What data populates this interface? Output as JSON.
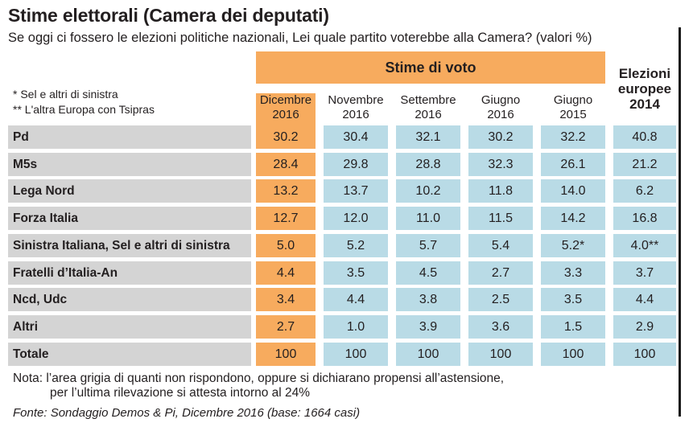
{
  "title": "Stime elettorali (Camera dei deputati)",
  "subtitle": "Se oggi ci fossero le elezioni politiche nazionali, Lei quale partito voterebbe alla Camera? (valori %)",
  "header_group": "Stime di voto",
  "euro_header": [
    "Elezioni",
    "europee",
    "2014"
  ],
  "legend_notes": [
    "* Sel e altri di sinistra",
    "** L'altra Europa con Tsipras"
  ],
  "columns": [
    [
      "Dicembre",
      "2016"
    ],
    [
      "Novembre",
      "2016"
    ],
    [
      "Settembre",
      "2016"
    ],
    [
      "Giugno",
      "2016"
    ],
    [
      "Giugno",
      "2015"
    ]
  ],
  "rows": [
    {
      "party": "Pd",
      "values": [
        "30.2",
        "30.4",
        "32.1",
        "30.2",
        "32.2",
        "40.8"
      ]
    },
    {
      "party": "M5s",
      "values": [
        "28.4",
        "29.8",
        "28.8",
        "32.3",
        "26.1",
        "21.2"
      ]
    },
    {
      "party": "Lega Nord",
      "values": [
        "13.2",
        "13.7",
        "10.2",
        "11.8",
        "14.0",
        "6.2"
      ]
    },
    {
      "party": "Forza Italia",
      "values": [
        "12.7",
        "12.0",
        "11.0",
        "11.5",
        "14.2",
        "16.8"
      ]
    },
    {
      "party": "Sinistra Italiana, Sel e altri di sinistra",
      "values": [
        "5.0",
        "5.2",
        "5.7",
        "5.4",
        "5.2*",
        "4.0**"
      ]
    },
    {
      "party": "Fratelli d’Italia-An",
      "values": [
        "4.4",
        "3.5",
        "4.5",
        "2.7",
        "3.3",
        "3.7"
      ]
    },
    {
      "party": "Ncd, Udc",
      "values": [
        "3.4",
        "4.4",
        "3.8",
        "2.5",
        "3.5",
        "4.4"
      ]
    },
    {
      "party": "Altri",
      "values": [
        "2.7",
        "1.0",
        "3.9",
        "3.6",
        "1.5",
        "2.9"
      ]
    },
    {
      "party": "Totale",
      "values": [
        "100",
        "100",
        "100",
        "100",
        "100",
        "100"
      ]
    }
  ],
  "nota": [
    "Nota: l’area grigia di quanti non rispondono, oppure si dichiarano propensi all’astensione,",
    "per l’ultima rilevazione si attesta intorno al 24%"
  ],
  "fonte": "Fonte: Sondaggio Demos & Pi, Dicembre 2016 (base: 1664 casi)",
  "colors": {
    "highlight": "#f7ab5e",
    "cell": "#b9dbe6",
    "label": "#d4d4d4"
  }
}
